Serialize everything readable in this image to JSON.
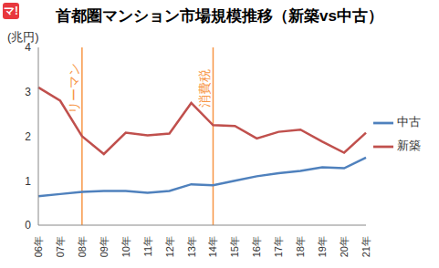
{
  "chart_data": {
    "type": "line",
    "title": "首都圏マンション市場規模推移（新築vs中古）",
    "logo": "マ!",
    "y_label": "(兆円)",
    "categories": [
      "06年",
      "07年",
      "08年",
      "09年",
      "10年",
      "11年",
      "12年",
      "13年",
      "14年",
      "15年",
      "16年",
      "17年",
      "18年",
      "19年",
      "20年",
      "21年"
    ],
    "series": [
      {
        "name": "新築",
        "color": "#c0504d",
        "values": [
          3.1,
          2.8,
          2.0,
          1.6,
          2.08,
          2.02,
          2.06,
          2.75,
          2.25,
          2.23,
          1.95,
          2.1,
          2.15,
          1.88,
          1.63,
          2.08
        ]
      },
      {
        "name": "中古",
        "color": "#4f81bd",
        "values": [
          0.65,
          0.7,
          0.75,
          0.77,
          0.77,
          0.73,
          0.77,
          0.92,
          0.9,
          1.0,
          1.1,
          1.17,
          1.22,
          1.3,
          1.28,
          1.52
        ]
      }
    ],
    "annotations": [
      {
        "x": "08年",
        "text": "リーマン",
        "color": "#f79646"
      },
      {
        "x": "14年",
        "text": "消費税",
        "color": "#f79646"
      }
    ],
    "ylim": [
      0,
      4
    ],
    "yticks": [
      0,
      1,
      2,
      3,
      4
    ],
    "grid": false,
    "legend": "right"
  }
}
